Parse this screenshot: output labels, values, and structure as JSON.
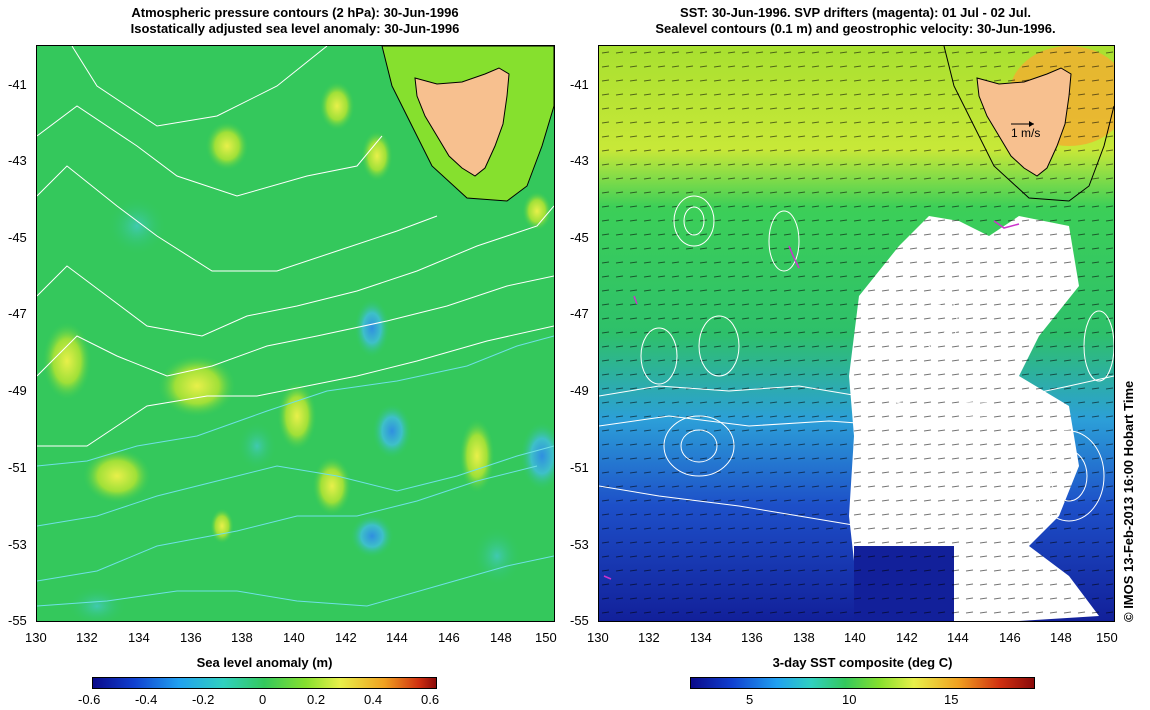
{
  "left_panel": {
    "title_line1": "Atmospheric pressure contours (2 hPa): 30-Jun-1996",
    "title_line2": "Isostatically adjusted sea level anomaly: 30-Jun-1996",
    "colorbar_label": "Sea level anomaly (m)",
    "colorbar_ticks": [
      "-0.6",
      "-0.4",
      "-0.2",
      "0",
      "0.2",
      "0.4",
      "0.6"
    ]
  },
  "right_panel": {
    "title_line1": "SST: 30-Jun-1996. SVP drifters (magenta): 01 Jul - 02 Jul.",
    "title_line2": "Sealevel contours (0.1 m) and geostrophic velocity: 30-Jun-1996.",
    "colorbar_label": "3-day SST composite (deg C)",
    "colorbar_ticks": [
      "5",
      "10",
      "15"
    ],
    "scale_arrow_label": "1 m/s"
  },
  "lat_ticks": [
    "-41",
    "-43",
    "-45",
    "-47",
    "-49",
    "-51",
    "-53",
    "-55"
  ],
  "lon_ticks": [
    "130",
    "132",
    "134",
    "136",
    "138",
    "140",
    "142",
    "144",
    "146",
    "148",
    "150"
  ],
  "credit": "© IMOS 13-Feb-2013 16:00 Hobart Time",
  "colors": {
    "land": "#f7c08f",
    "shelf": "#86e02e",
    "ocean_green": "#2ec95a",
    "contour_white": "#ffffff",
    "contour_cyan": "#6fe0e6",
    "drifter": "#cc33cc"
  }
}
